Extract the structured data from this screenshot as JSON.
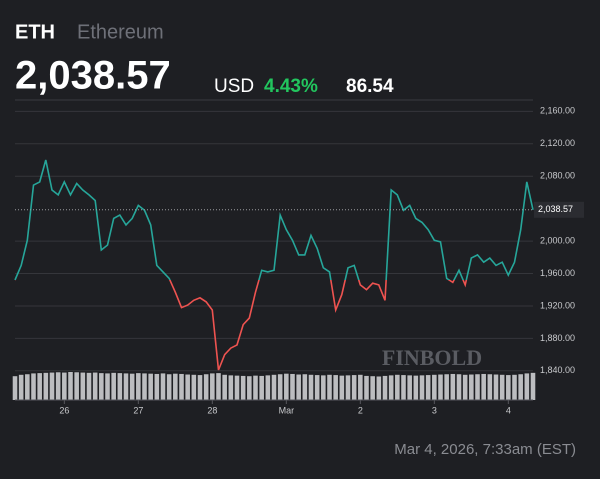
{
  "header": {
    "symbol": "ETH",
    "name": "Ethereum",
    "currency": "USD",
    "change_pct": "4.43%"
  },
  "footer": {
    "timestamp": "Mar 4, 2026, 7:33am (EST)"
  },
  "watermark": "FINBOLD",
  "chart_data": {
    "type": "line",
    "last_price": {
      "value": 2038.57,
      "label": "2,038.57"
    },
    "change": 86.54,
    "up_color": "#26a69a",
    "down_color": "#ef5350",
    "x": [
      0,
      1,
      2,
      3,
      4,
      5,
      6,
      7,
      8,
      9,
      10,
      11,
      12,
      13,
      14,
      15,
      16,
      17,
      18,
      19,
      20,
      21,
      22,
      23,
      24,
      25,
      26,
      27,
      28,
      29,
      30,
      31,
      32,
      33,
      34,
      35,
      36,
      37,
      38,
      39,
      40,
      41,
      42,
      43,
      44,
      45,
      46,
      47,
      48,
      49,
      50,
      51,
      52,
      53,
      54,
      55,
      56,
      57,
      58,
      59,
      60,
      61,
      62,
      63,
      64,
      65,
      66,
      67,
      68,
      69,
      70,
      71,
      72,
      73,
      74,
      75,
      76,
      77,
      78,
      79,
      80,
      81,
      82,
      83,
      84
    ],
    "values": [
      1952,
      1970,
      2001,
      2069,
      2073,
      2100,
      2063,
      2057,
      2073,
      2057,
      2071,
      2063,
      2057,
      2050,
      1989,
      1995,
      2028,
      2032,
      2020,
      2028,
      2044,
      2038,
      2020,
      1970,
      1962,
      1954,
      1937,
      1918,
      1921,
      1927,
      1930,
      1925,
      1915,
      1841,
      1860,
      1868,
      1872,
      1897,
      1905,
      1937,
      1964,
      1962,
      1964,
      2032,
      2014,
      2001,
      1983,
      1983,
      2007,
      1991,
      1967,
      1962,
      1915,
      1934,
      1967,
      1970,
      1946,
      1940,
      1948,
      1946,
      1927,
      2063,
      2057,
      2038,
      2044,
      2028,
      2023,
      2014,
      2001,
      1999,
      1954,
      1949,
      1964,
      1946,
      1979,
      1983,
      1974,
      1979,
      1970,
      1974,
      1958,
      1974,
      2014,
      2073,
      2038.57
    ],
    "volume": [
      85,
      90,
      92,
      95,
      96,
      97,
      98,
      99,
      98,
      100,
      99,
      98,
      97,
      98,
      96,
      95,
      97,
      96,
      95,
      94,
      96,
      95,
      94,
      93,
      95,
      92,
      94,
      93,
      91,
      90,
      89,
      92,
      95,
      96,
      90,
      88,
      87,
      86,
      85,
      87,
      86,
      88,
      90,
      92,
      94,
      93,
      91,
      92,
      90,
      89,
      88,
      90,
      89,
      87,
      88,
      89,
      90,
      86,
      85,
      84,
      86,
      88,
      90,
      89,
      88,
      87,
      88,
      89,
      90,
      91,
      92,
      93,
      92,
      90,
      91,
      92,
      93,
      92,
      91,
      90,
      89,
      90,
      92,
      95,
      97
    ],
    "xlim": [
      0,
      84
    ],
    "xticks": [
      {
        "value": 8,
        "label": "26"
      },
      {
        "value": 20,
        "label": "27"
      },
      {
        "value": 32,
        "label": "28"
      },
      {
        "value": 44,
        "label": "Mar"
      },
      {
        "value": 56,
        "label": "2"
      },
      {
        "value": 68,
        "label": "3"
      },
      {
        "value": 80,
        "label": "4"
      }
    ],
    "ylim": [
      1804,
      2174
    ],
    "yticks": [
      {
        "value": 1840,
        "label": "1,840.00"
      },
      {
        "value": 1880,
        "label": "1,880.00"
      },
      {
        "value": 1920,
        "label": "1,920.00"
      },
      {
        "value": 1960,
        "label": "1,960.00"
      },
      {
        "value": 2000,
        "label": "2,000.00"
      },
      {
        "value": 2080,
        "label": "2,080.00"
      },
      {
        "value": 2120,
        "label": "2,120.00"
      },
      {
        "value": 2160,
        "label": "2,160.00"
      }
    ],
    "grid": true
  }
}
